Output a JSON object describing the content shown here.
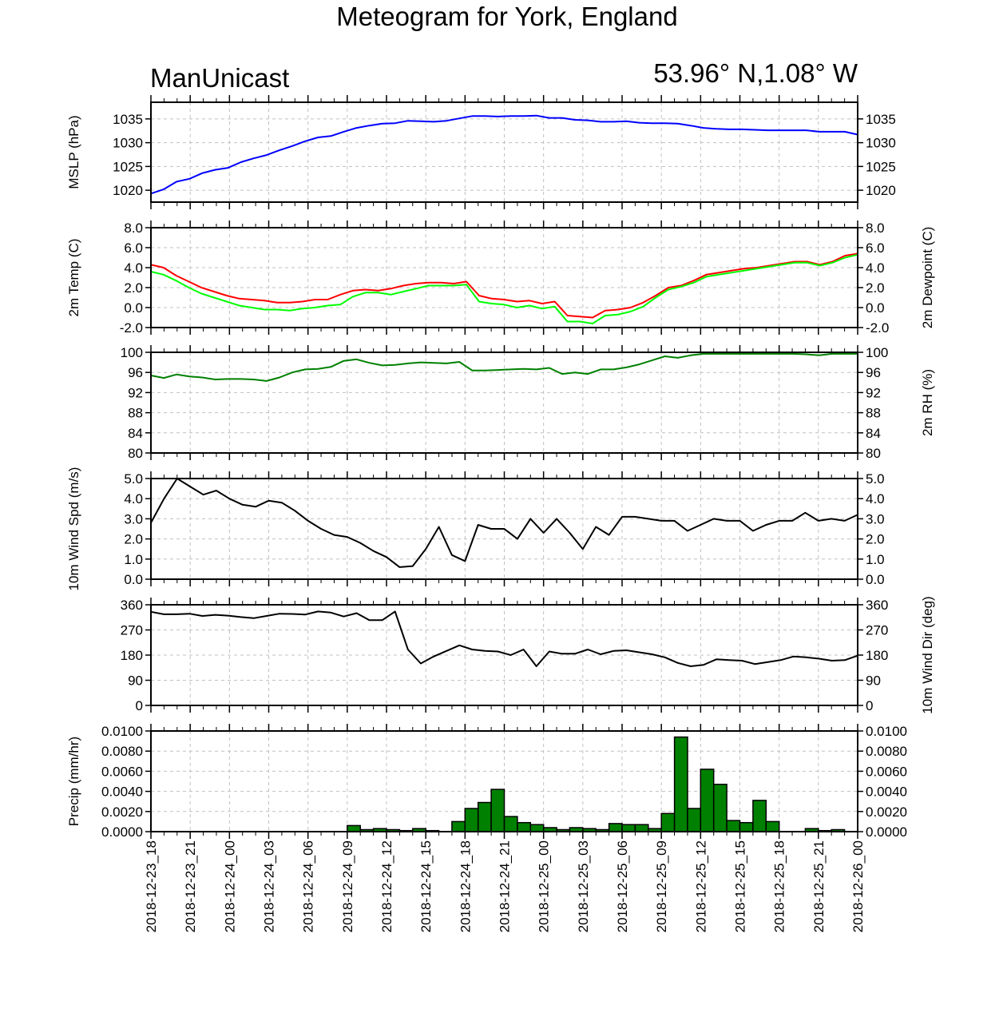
{
  "title": "Meteogram for York, England",
  "source_label": "ManUnicast",
  "location_label": "53.96° N,1.08° W",
  "colors": {
    "mslp": "#0000ff",
    "temp": "#ff0000",
    "dewpoint": "#00ff00",
    "rh": "#008000",
    "wind_spd": "#000000",
    "wind_dir": "#000000",
    "precip_fill": "#008000",
    "grid": "#c0c0c0",
    "frame": "#000000"
  },
  "chart_data": [
    {
      "type": "line",
      "ylabel": "MSLP (hPa)",
      "ylim": [
        1017.5,
        1038.5
      ],
      "yticks": [
        "1020",
        "1025",
        "1030",
        "1035"
      ],
      "ytick_values": [
        1020,
        1025,
        1030,
        1035
      ],
      "series": [
        {
          "values": [
            1019.3,
            1020.2,
            1021.8,
            1022.4,
            1023.6,
            1024.3,
            1024.7,
            1025.9,
            1026.7,
            1027.4,
            1028.4,
            1029.3,
            1030.3,
            1031.1,
            1031.4,
            1032.3,
            1033.1,
            1033.6,
            1034.0,
            1034.1,
            1034.6,
            1034.5,
            1034.4,
            1034.6,
            1035.1,
            1035.6,
            1035.6,
            1035.5,
            1035.6,
            1035.6,
            1035.7,
            1035.2,
            1035.2,
            1034.8,
            1034.7,
            1034.4,
            1034.4,
            1034.5,
            1034.2,
            1034.1,
            1034.1,
            1034.0,
            1033.6,
            1033.1,
            1032.9,
            1032.8,
            1032.8,
            1032.7,
            1032.6,
            1032.6,
            1032.6,
            1032.6,
            1032.3,
            1032.3,
            1032.3,
            1031.7
          ]
        }
      ],
      "grid": true
    },
    {
      "type": "line",
      "ylabel": "2m Temp (C)",
      "ylabel_right": "2m Dewpoint (C)",
      "ylim": [
        -2.0,
        8.0
      ],
      "yticks": [
        "-2.0",
        "0.0",
        "2.0",
        "4.0",
        "6.0",
        "8.0"
      ],
      "ytick_values": [
        -2,
        0,
        2,
        4,
        6,
        8
      ],
      "series": [
        {
          "values": [
            4.3,
            4.0,
            3.2,
            2.6,
            2.0,
            1.6,
            1.2,
            0.9,
            0.8,
            0.7,
            0.5,
            0.5,
            0.6,
            0.8,
            0.8,
            1.3,
            1.7,
            1.8,
            1.7,
            1.9,
            2.2,
            2.4,
            2.5,
            2.5,
            2.4,
            2.6,
            1.2,
            0.9,
            0.8,
            0.6,
            0.7,
            0.4,
            0.6,
            -0.8,
            -0.9,
            -1.0,
            -0.3,
            -0.2,
            0.0,
            0.5,
            1.2,
            2.0,
            2.2,
            2.7,
            3.3,
            3.5,
            3.7,
            3.9,
            4.0,
            4.2,
            4.4,
            4.6,
            4.6,
            4.3,
            4.6,
            5.2,
            5.4
          ]
        },
        {
          "values": [
            3.6,
            3.3,
            2.7,
            2.0,
            1.4,
            1.0,
            0.6,
            0.2,
            0.0,
            -0.2,
            -0.2,
            -0.3,
            -0.1,
            0.0,
            0.2,
            0.3,
            1.1,
            1.5,
            1.5,
            1.3,
            1.6,
            1.9,
            2.2,
            2.2,
            2.2,
            2.3,
            0.6,
            0.4,
            0.3,
            0.0,
            0.2,
            -0.1,
            0.1,
            -1.4,
            -1.4,
            -1.6,
            -0.8,
            -0.7,
            -0.4,
            0.1,
            1.0,
            1.8,
            2.1,
            2.5,
            3.1,
            3.3,
            3.5,
            3.7,
            3.9,
            4.1,
            4.3,
            4.5,
            4.5,
            4.2,
            4.5,
            5.0,
            5.3
          ]
        }
      ],
      "grid": true
    },
    {
      "type": "line",
      "ylabel_right": "2m RH (%)",
      "ylim": [
        80,
        100
      ],
      "yticks": [
        "80",
        "84",
        "88",
        "92",
        "96",
        "100"
      ],
      "ytick_values": [
        80,
        84,
        88,
        92,
        96,
        100
      ],
      "series": [
        {
          "values": [
            95.4,
            94.9,
            95.6,
            95.2,
            95.0,
            94.6,
            94.7,
            94.7,
            94.6,
            94.3,
            95.0,
            96.0,
            96.6,
            96.7,
            97.1,
            98.3,
            98.6,
            97.9,
            97.4,
            97.5,
            97.8,
            98.0,
            97.9,
            97.8,
            98.1,
            96.4,
            96.4,
            96.5,
            96.6,
            96.7,
            96.6,
            96.9,
            95.7,
            96.0,
            95.7,
            96.6,
            96.6,
            97.0,
            97.6,
            98.4,
            99.2,
            98.9,
            99.4,
            99.7,
            99.7,
            99.7,
            99.7,
            99.7,
            99.7,
            99.7,
            99.7,
            99.6,
            99.4,
            99.7,
            99.7,
            99.7
          ]
        }
      ],
      "grid": true
    },
    {
      "type": "line",
      "ylabel": "10m Wind Spd (m/s)",
      "ylim": [
        0.0,
        5.0
      ],
      "yticks": [
        "0.0",
        "1.0",
        "2.0",
        "3.0",
        "4.0",
        "5.0"
      ],
      "ytick_values": [
        0,
        1,
        2,
        3,
        4,
        5
      ],
      "series": [
        {
          "values": [
            2.8,
            4.0,
            5.0,
            4.6,
            4.2,
            4.4,
            4.0,
            3.7,
            3.6,
            3.9,
            3.8,
            3.4,
            2.9,
            2.5,
            2.2,
            2.1,
            1.8,
            1.4,
            1.1,
            0.6,
            0.65,
            1.5,
            2.6,
            1.2,
            0.9,
            2.7,
            2.5,
            2.5,
            2.0,
            3.0,
            2.3,
            3.0,
            2.3,
            1.5,
            2.6,
            2.2,
            3.1,
            3.1,
            3.0,
            2.9,
            2.9,
            2.4,
            2.7,
            3.0,
            2.9,
            2.9,
            2.4,
            2.7,
            2.9,
            2.9,
            3.3,
            2.9,
            3.0,
            2.9,
            3.2
          ]
        }
      ],
      "grid": true
    },
    {
      "type": "line",
      "ylabel_right": "10m Wind Dir (deg)",
      "ylim": [
        0,
        360
      ],
      "yticks": [
        "0",
        "90",
        "180",
        "270",
        "360"
      ],
      "ytick_values": [
        0,
        90,
        180,
        270,
        360
      ],
      "series": [
        {
          "values": [
            335,
            326,
            326,
            328,
            320,
            324,
            321,
            316,
            312,
            320,
            328,
            327,
            325,
            336,
            332,
            318,
            330,
            305,
            305,
            336,
            200,
            150,
            175,
            195,
            215,
            200,
            195,
            193,
            180,
            200,
            140,
            193,
            185,
            185,
            200,
            183,
            195,
            197,
            190,
            183,
            172,
            152,
            140,
            145,
            165,
            162,
            160,
            148,
            155,
            162,
            175,
            172,
            167,
            160,
            162,
            178
          ]
        }
      ],
      "grid": true
    },
    {
      "type": "bar",
      "ylabel": "Precip (mm/hr)",
      "ylim": [
        0.0,
        0.01
      ],
      "yticks": [
        "0.0000",
        "0.0020",
        "0.0040",
        "0.0060",
        "0.0080",
        "0.0100"
      ],
      "ytick_values": [
        0.0,
        0.002,
        0.004,
        0.006,
        0.008,
        0.01
      ],
      "values": [
        0,
        0,
        0,
        0,
        0,
        0,
        0,
        0,
        0,
        0,
        0,
        0,
        0,
        0,
        0,
        0.0006,
        0.0002,
        0.0003,
        0.0002,
        0.0001,
        0.0003,
        0.0001,
        0,
        0.001,
        0.0023,
        0.0029,
        0.0042,
        0.0015,
        0.0009,
        0.0007,
        0.0004,
        0.0002,
        0.0004,
        0.0003,
        0.0002,
        0.0008,
        0.0007,
        0.0007,
        0.0003,
        0.0018,
        0.0094,
        0.0023,
        0.0062,
        0.0047,
        0.0011,
        0.0009,
        0.0031,
        0.001,
        0,
        0,
        0.0003,
        0.0001,
        0.0002,
        0
      ],
      "grid": true
    }
  ],
  "x_ticklabels": [
    "2018-12-23_18",
    "2018-12-23_21",
    "2018-12-24_00",
    "2018-12-24_03",
    "2018-12-24_06",
    "2018-12-24_09",
    "2018-12-24_12",
    "2018-12-24_15",
    "2018-12-24_18",
    "2018-12-24_21",
    "2018-12-25_00",
    "2018-12-25_03",
    "2018-12-25_06",
    "2018-12-25_09",
    "2018-12-25_12",
    "2018-12-25_15",
    "2018-12-25_18",
    "2018-12-25_21",
    "2018-12-26_00"
  ]
}
